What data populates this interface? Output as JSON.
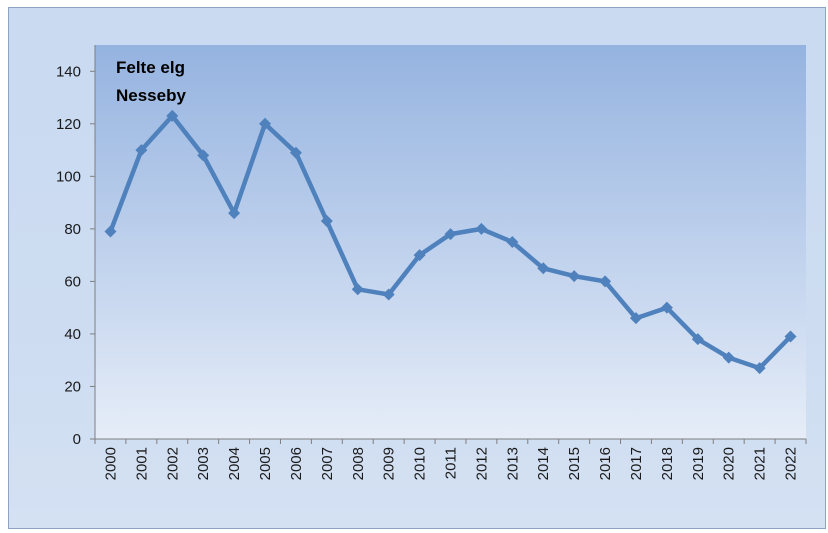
{
  "chart_data": {
    "type": "line",
    "title_lines": [
      "Felte elg",
      "Nesseby"
    ],
    "xlabel": "",
    "ylabel": "",
    "ylim": [
      0,
      150
    ],
    "y_ticks": [
      0,
      20,
      40,
      60,
      80,
      100,
      120,
      140
    ],
    "grid": false,
    "legend": "none",
    "categories": [
      "2000",
      "2001",
      "2002",
      "2003",
      "2004",
      "2005",
      "2006",
      "2007",
      "2008",
      "2009",
      "2010",
      "2011",
      "2012",
      "2013",
      "2014",
      "2015",
      "2016",
      "2017",
      "2018",
      "2019",
      "2020",
      "2021",
      "2022"
    ],
    "series": [
      {
        "values": [
          79,
          110,
          123,
          108,
          86,
          120,
          109,
          83,
          57,
          55,
          70,
          78,
          80,
          75,
          65,
          62,
          60,
          46,
          50,
          38,
          31,
          27,
          39
        ],
        "color": "#4f81bd"
      }
    ],
    "colors": {
      "plot_top": "#95b3e0",
      "plot_bottom": "#e6edf8",
      "axis": "#7f7f7f"
    }
  }
}
